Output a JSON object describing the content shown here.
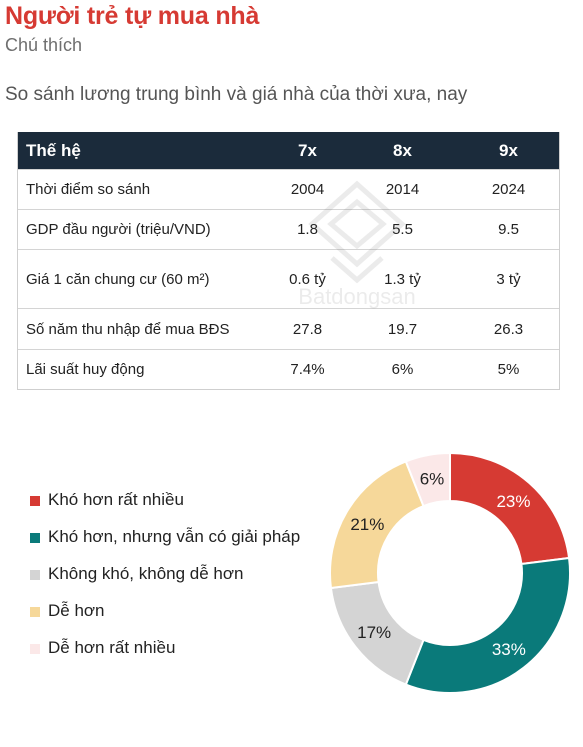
{
  "header": {
    "title": "Người trẻ tự mua nhà",
    "subtitle": "Chú thích",
    "heading": "So sánh lương trung bình và giá nhà của thời xưa, nay"
  },
  "watermark": {
    "text": "Batdongsan"
  },
  "table": {
    "columns": [
      "Thế hệ",
      "7x",
      "8x",
      "9x"
    ],
    "rows": [
      [
        "Thời điểm so sánh",
        "2004",
        "2014",
        "2024"
      ],
      [
        "GDP đầu người (triệu/VND)",
        "1.8",
        "5.5",
        "9.5"
      ],
      [
        "Giá 1 căn chung cư (60 m²)",
        "0.6 tỷ",
        "1.3 tỷ",
        "3 tỷ"
      ],
      [
        "Số năm thu nhập để mua BĐS",
        "27.8",
        "19.7",
        "26.3"
      ],
      [
        "Lãi suất huy động",
        "7.4%",
        "6%",
        "5%"
      ]
    ]
  },
  "chart_data": {
    "type": "pie",
    "donut": true,
    "categories": [
      "Khó hơn rất nhiều",
      "Khó hơn, nhưng vẫn có giải pháp",
      "Không khó, không dễ hơn",
      "Dễ hơn",
      "Dễ hơn rất nhiều"
    ],
    "values": [
      23,
      33,
      17,
      21,
      6
    ],
    "labels": [
      "23%",
      "33%",
      "17%",
      "21%",
      "6%"
    ],
    "colors": [
      "#d63a33",
      "#0a7a7a",
      "#d4d4d4",
      "#f6d89a",
      "#fbe8e8"
    ],
    "label_colors": [
      "#ffffff",
      "#ffffff",
      "#222222",
      "#222222",
      "#222222"
    ],
    "legend_position": "left"
  }
}
